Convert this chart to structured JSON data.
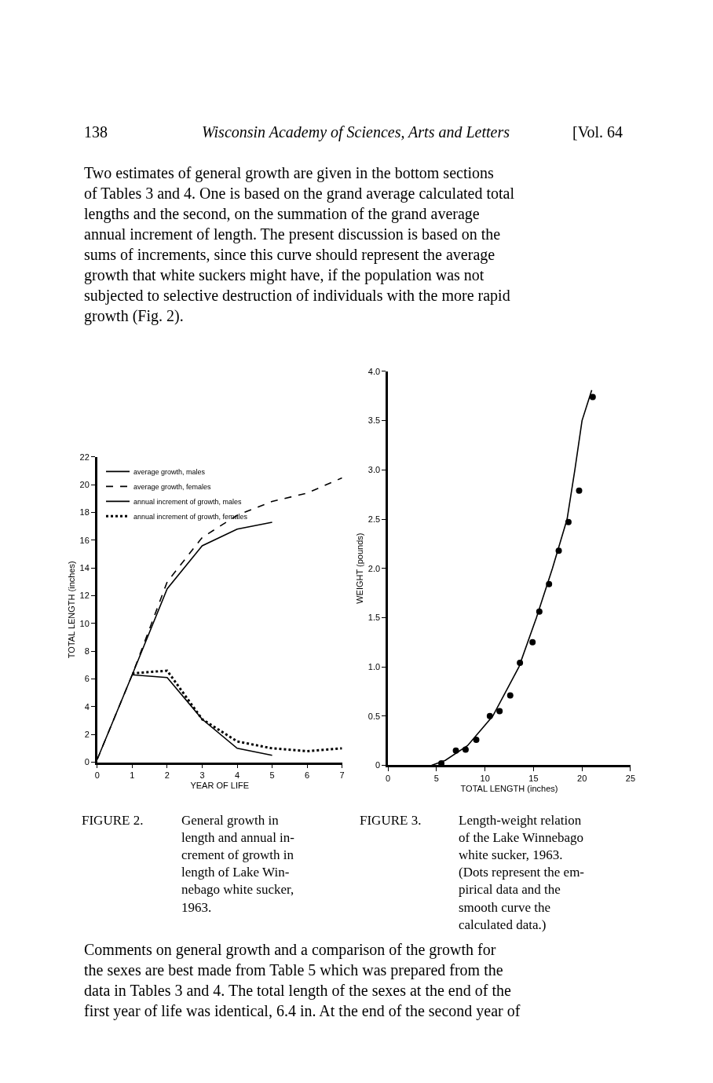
{
  "chart_data": [
    {
      "type": "line",
      "xlabel": "YEAR OF LIFE",
      "ylabel": "TOTAL LENGTH (inches)",
      "x": [
        0,
        1,
        2,
        3,
        4,
        5,
        6,
        7
      ],
      "series": [
        {
          "name": "average growth, males",
          "color": "#000000",
          "line_style": "solid",
          "values": [
            0.2,
            6.3,
            12.5,
            15.6,
            16.8,
            17.3,
            null,
            null
          ]
        },
        {
          "name": "average growth, females",
          "color": "#000000",
          "line_style": "dashed",
          "values": [
            0.2,
            6.3,
            13.0,
            16.2,
            17.8,
            18.8,
            19.4,
            20.5
          ]
        },
        {
          "name": "annual increment of growth, males",
          "color": "#000000",
          "line_style": "solid",
          "values": [
            null,
            6.3,
            6.1,
            3.1,
            1.0,
            0.5,
            null,
            null
          ]
        },
        {
          "name": "annual increment of growth, females",
          "color": "#000000",
          "line_style": "dotted",
          "values": [
            null,
            6.4,
            6.6,
            3.1,
            1.5,
            1.0,
            0.8,
            1.0
          ]
        }
      ],
      "xlim": [
        0,
        7
      ],
      "xticks": [
        0,
        1,
        2,
        3,
        4,
        5,
        6,
        7
      ],
      "ylim": [
        0,
        22
      ],
      "yticks": [
        0,
        2,
        4,
        6,
        8,
        10,
        12,
        14,
        16,
        18,
        20,
        22
      ],
      "legend": "top left",
      "marker": "none",
      "annotations": [
        "138",
        "Wisconsin Academy of Sciences, Arts and Letters",
        "[Vol. 64",
        "Two estimates of general growth are given in the bottom sections\nof Tables 3 and 4. One is based on the grand average calculated total\nlengths and the second, on the summation of the grand average\nannual increment of length. The present discussion is based on the\nsums of increments, since this curve should represent the average\ngrowth that white suckers might have, if the population was not\nsubjected to selective destruction of individuals with the more rapid\ngrowth (Fig. 2).",
        "FIGURE 2.",
        "General growth in\nlength and annual in-\ncrement of growth in\nlength of Lake Win-\nnebago white sucker,\n1963.",
        "Comments on general growth and a comparison of the growth for\nthe sexes are best made from Table 5 which was prepared from the\ndata in Tables 3 and 4. The total length of the sexes at the end of the\nfirst year of life was identical, 6.4 in. At the end of the second year of"
      ]
    },
    {
      "type": "scatter",
      "xlabel": "TOTAL LENGTH (inches)",
      "ylabel": "WEIGHT (pounds)",
      "series": [
        {
          "type": "scatter",
          "marker": "circle",
          "color": "#000000",
          "x": [
            5.5,
            7.0,
            8.0,
            9.1,
            10.5,
            11.5,
            12.6,
            13.6,
            14.9,
            15.6,
            16.6,
            17.6,
            18.6,
            19.7,
            21.1
          ],
          "values": [
            0.02,
            0.15,
            0.16,
            0.26,
            0.5,
            0.55,
            0.71,
            1.04,
            1.25,
            1.56,
            1.84,
            2.18,
            2.47,
            2.79,
            3.74
          ]
        },
        {
          "type": "line",
          "marker": "none",
          "color": "#000000",
          "x": [
            4.5,
            5.9,
            8.2,
            10.8,
            13.5,
            15.3,
            16.95,
            18.46,
            19.26,
            20.0,
            21.0
          ],
          "values": [
            0,
            0.05,
            0.2,
            0.5,
            1.0,
            1.5,
            2.0,
            2.5,
            3.0,
            3.5,
            3.81
          ]
        }
      ],
      "xlim": [
        0,
        25
      ],
      "xticks": [
        0,
        5,
        10,
        15,
        20,
        25
      ],
      "ylim": [
        0,
        4
      ],
      "yticks": [
        0,
        {
          "value": 0.5,
          "label": "0.5"
        },
        {
          "value": 1,
          "label": "1.0"
        },
        {
          "value": 1.5,
          "label": "1.5"
        },
        {
          "value": 2,
          "label": "2.0"
        },
        {
          "value": 2.5,
          "label": "2.5"
        },
        {
          "value": 3,
          "label": "3.0"
        },
        {
          "value": 3.5,
          "label": "3.5"
        },
        {
          "value": 4,
          "label": "4.0"
        }
      ],
      "annotations": [
        "FIGURE 3.",
        "Length-weight relation\nof the Lake Winnebago\nwhite sucker, 1963.\n(Dots represent the em-\npirical data and the\nsmooth curve the\ncalculated data.)"
      ]
    }
  ]
}
